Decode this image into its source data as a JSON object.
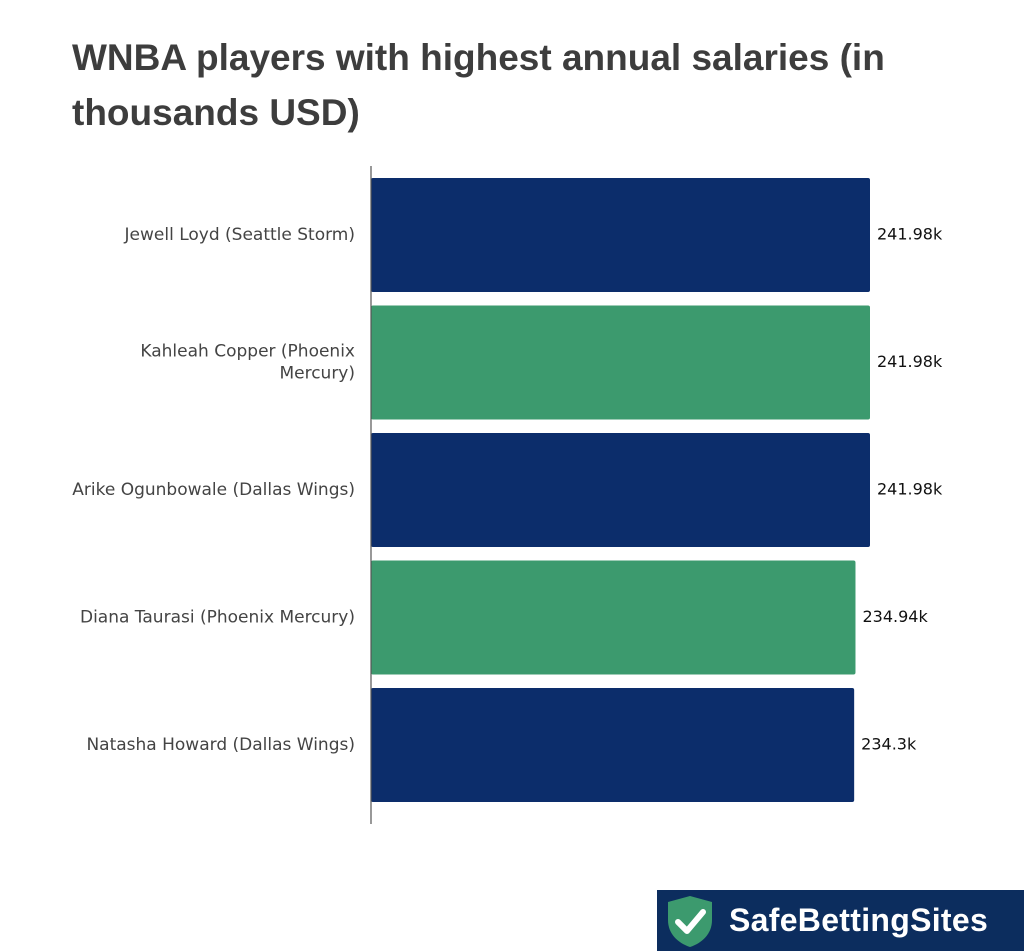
{
  "chart_data": {
    "type": "bar",
    "orientation": "horizontal",
    "title": "WNBA players with highest annual salaries (in thousands USD)",
    "categories": [
      "Jewell Loyd (Seattle Storm)",
      "Kahleah Copper (Phoenix Mercury)",
      "Arike Ogunbowale (Dallas Wings)",
      "Diana Taurasi (Phoenix Mercury)",
      "Natasha Howard (Dallas Wings)"
    ],
    "category_label_lines": [
      [
        "Jewell Loyd (Seattle Storm)"
      ],
      [
        "Kahleah Copper (Phoenix",
        "Mercury)"
      ],
      [
        "Arike Ogunbowale (Dallas Wings)"
      ],
      [
        "Diana Taurasi (Phoenix Mercury)"
      ],
      [
        "Natasha Howard (Dallas Wings)"
      ]
    ],
    "values": [
      241.98,
      241.98,
      241.98,
      234.94,
      234.3
    ],
    "data_labels": [
      "241.98k",
      "241.98k",
      "241.98k",
      "234.94k",
      "234.3k"
    ],
    "bar_colors": [
      "#0c2d6b",
      "#3c9a6e",
      "#0c2d6b",
      "#3c9a6e",
      "#0c2d6b"
    ],
    "xlim": [
      0,
      241.98
    ],
    "grid": false,
    "legend": "none"
  },
  "brand": {
    "name": "SafeBettingSites",
    "shield_color": "#3c9a6e",
    "background_color": "#0c2d5e"
  }
}
